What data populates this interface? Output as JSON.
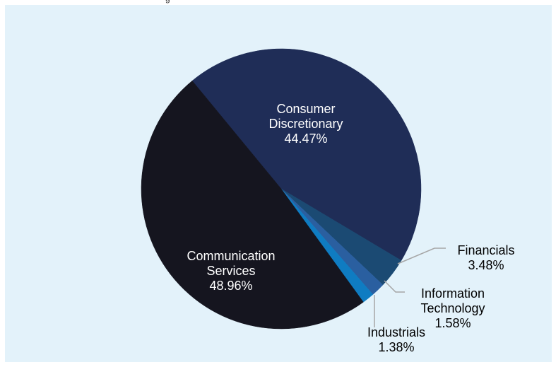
{
  "page": {
    "top_text": "g"
  },
  "chart_data": {
    "type": "pie",
    "title": "",
    "slices": [
      {
        "label_lines": [
          "Consumer",
          "Discretionary"
        ],
        "value": 44.47,
        "value_label": "44.47%",
        "color": "#1f2d57"
      },
      {
        "label_lines": [
          "Financials"
        ],
        "value": 3.48,
        "value_label": "3.48%",
        "color": "#1b4a73"
      },
      {
        "label_lines": [
          "Information",
          "Technology"
        ],
        "value": 1.58,
        "value_label": "1.58%",
        "color": "#2a5fa0"
      },
      {
        "label_lines": [
          "Industrials"
        ],
        "value": 1.38,
        "value_label": "1.38%",
        "color": "#0f7cc2"
      },
      {
        "label_lines": [
          "Communication",
          "Services"
        ],
        "value": 48.96,
        "value_label": "48.96%",
        "color": "#15151f"
      }
    ],
    "label_colors": {
      "inside": "#ffffff",
      "outside": "#000000",
      "leader": "#a6a6a6"
    }
  }
}
